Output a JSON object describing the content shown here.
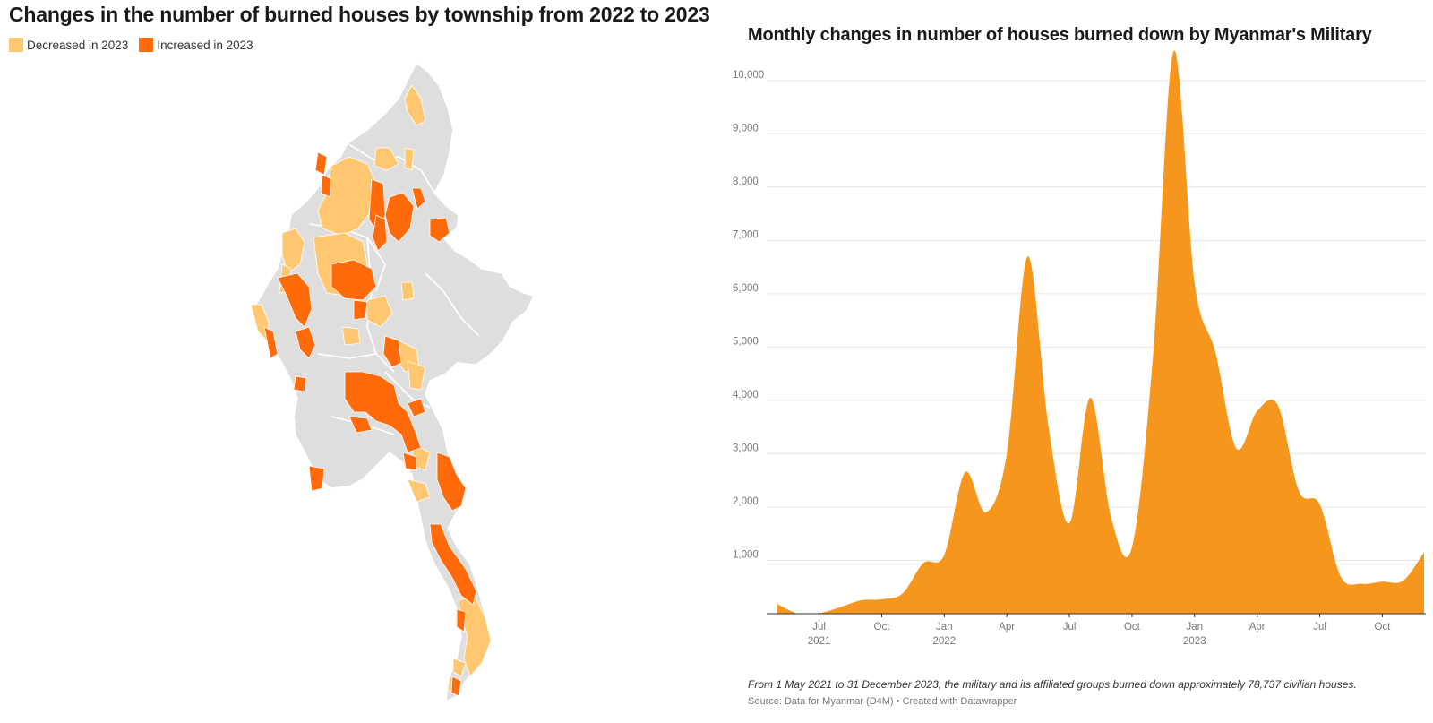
{
  "map": {
    "title": "Changes in the number of burned houses by township from 2022 to 2023",
    "legend": [
      {
        "label": "Decreased in 2023",
        "color": "#FFC76F"
      },
      {
        "label": "Increased in 2023",
        "color": "#FF6A0B"
      }
    ],
    "base_color": "#DEDEDE"
  },
  "chart_data": {
    "type": "area",
    "title": "Monthly changes in number of houses burned down by Myanmar's Military",
    "xlabel": "",
    "ylabel": "",
    "color": "#F7961D",
    "ylim": [
      0,
      10500
    ],
    "y_ticks": [
      1000,
      2000,
      3000,
      4000,
      5000,
      6000,
      7000,
      8000,
      9000,
      10000
    ],
    "y_tick_labels": [
      "1,000",
      "2,000",
      "3,000",
      "4,000",
      "5,000",
      "6,000",
      "7,000",
      "8,000",
      "9,000",
      "10,000"
    ],
    "x_ticks": [
      {
        "month": "2021-07",
        "label": "Jul",
        "year": "2021"
      },
      {
        "month": "2021-10",
        "label": "Oct",
        "year": ""
      },
      {
        "month": "2022-01",
        "label": "Jan",
        "year": "2022"
      },
      {
        "month": "2022-04",
        "label": "Apr",
        "year": ""
      },
      {
        "month": "2022-07",
        "label": "Jul",
        "year": ""
      },
      {
        "month": "2022-10",
        "label": "Oct",
        "year": ""
      },
      {
        "month": "2023-01",
        "label": "Jan",
        "year": "2023"
      },
      {
        "month": "2023-04",
        "label": "Apr",
        "year": ""
      },
      {
        "month": "2023-07",
        "label": "Jul",
        "year": ""
      },
      {
        "month": "2023-10",
        "label": "Oct",
        "year": ""
      }
    ],
    "months": [
      "2021-05",
      "2021-06",
      "2021-07",
      "2021-08",
      "2021-09",
      "2021-10",
      "2021-11",
      "2021-12",
      "2022-01",
      "2022-02",
      "2022-03",
      "2022-04",
      "2022-05",
      "2022-06",
      "2022-07",
      "2022-08",
      "2022-09",
      "2022-10",
      "2022-11",
      "2022-12",
      "2023-01",
      "2023-02",
      "2023-03",
      "2023-04",
      "2023-05",
      "2023-06",
      "2023-07",
      "2023-08",
      "2023-09",
      "2023-10",
      "2023-11",
      "2023-12"
    ],
    "values": [
      180,
      0,
      10,
      120,
      250,
      270,
      380,
      950,
      1100,
      2650,
      1900,
      3000,
      6700,
      3500,
      1700,
      4050,
      1800,
      1250,
      4800,
      10550,
      6200,
      4900,
      3100,
      3800,
      3900,
      2300,
      2050,
      700,
      560,
      600,
      620,
      1150
    ]
  },
  "footer": {
    "note": "From 1 May 2021 to 31 December 2023, the military and its affiliated groups burned down approximately 78,737 civilian houses.",
    "source": "Source: Data for Myanmar (D4M) • Created with Datawrapper"
  }
}
